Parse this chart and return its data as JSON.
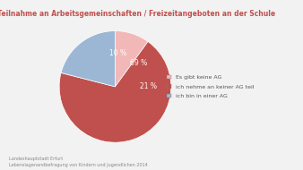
{
  "title": "Teilnahme an Arbeitsgemeinschaften / Freizeitangeboten an der Schule",
  "title_color": "#c0504d",
  "labels": [
    "Es gibt keine AG",
    "ich nehme an keiner AG teil",
    "ich bin in einer AG"
  ],
  "values": [
    10,
    69,
    21
  ],
  "colors": [
    "#f2b8b8",
    "#c0504d",
    "#9bb7d4"
  ],
  "label_texts": [
    "10 %",
    "69 %",
    "21 %"
  ],
  "startangle": 90,
  "footnote_line1": "Landeshauptstadt Erfurt",
  "footnote_line2": "Lebenslagenandbefragung von Kindern und Jugendlichen 2014",
  "background_color": "#f2f2f2"
}
